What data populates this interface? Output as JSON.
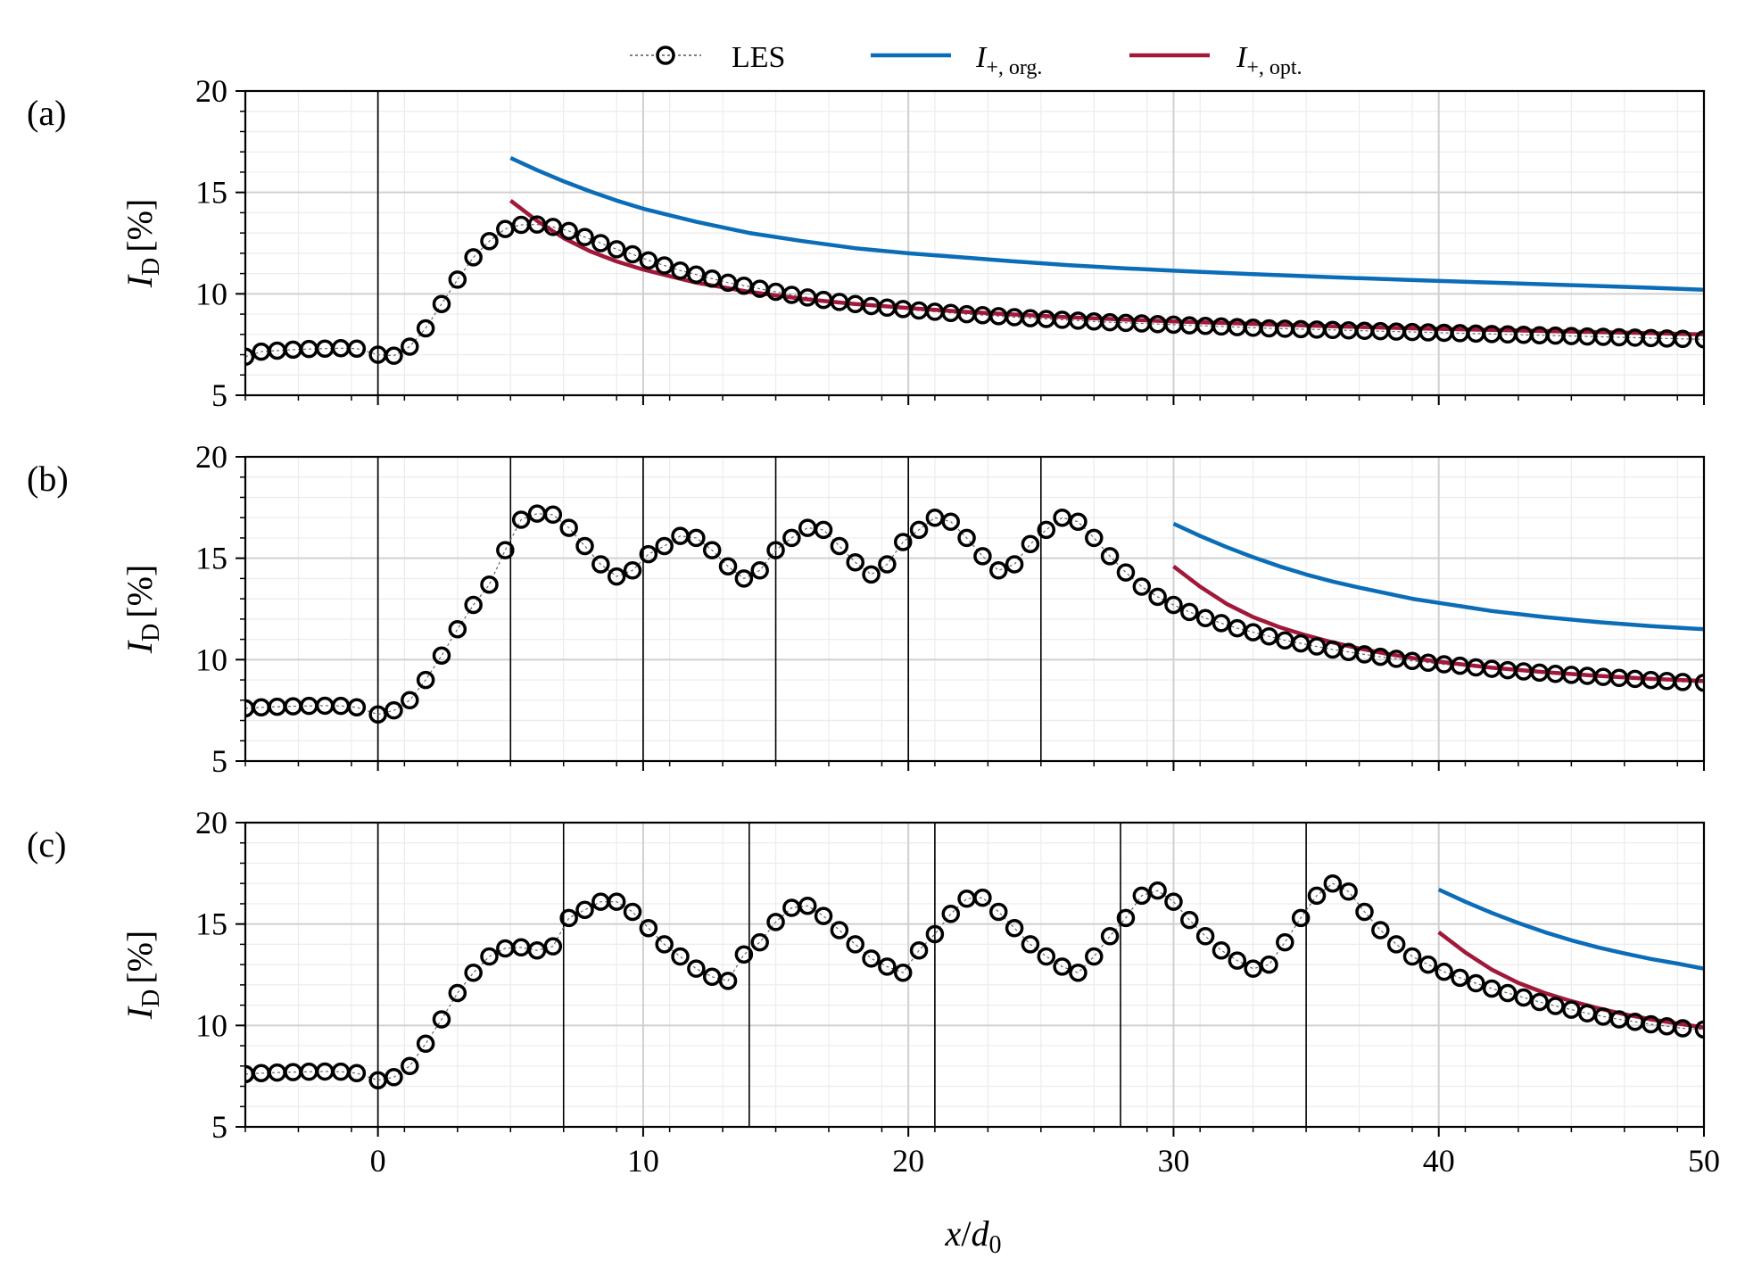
{
  "figure": {
    "xlabel": "x/d0",
    "xlabel_parts": {
      "var": "x",
      "slash": "/",
      "sym": "d",
      "sub": "0"
    },
    "ylabel_parts": {
      "sym": "I",
      "sub": "D",
      "rest": "[%]"
    },
    "colors": {
      "les": "#000000",
      "org": "#0b6db7",
      "opt": "#a0183a",
      "grid": "#d0d0d0"
    }
  },
  "legend": {
    "entries": [
      {
        "key": "les",
        "sym": "LES",
        "sub": ""
      },
      {
        "key": "org",
        "sym": "I",
        "sub": "+, org."
      },
      {
        "key": "opt",
        "sym": "I",
        "sub": "+, opt."
      }
    ]
  },
  "chart_data": [
    {
      "type": "line",
      "panel": "(a)",
      "xlim": [
        -5,
        50
      ],
      "ylim": [
        5,
        20
      ],
      "xticks": [
        0,
        10,
        20,
        30,
        40,
        50
      ],
      "yticks": [
        5,
        10,
        15,
        20
      ],
      "grid": true,
      "turbine_positions": [
        0
      ],
      "series": [
        {
          "name": "LES",
          "marker": "open-circle",
          "x": [
            -5.0,
            -4.4,
            -3.8,
            -3.2,
            -2.6,
            -2.0,
            -1.4,
            -0.8,
            0.0,
            0.6,
            1.2,
            1.8,
            2.4,
            3.0,
            3.6,
            4.2,
            4.8,
            5.4,
            6.0,
            6.6,
            7.2,
            7.8,
            8.4,
            9.0,
            9.6,
            10.2,
            10.8,
            11.4,
            12.0,
            12.6,
            13.2,
            13.8,
            14.4,
            15.0,
            15.6,
            16.2,
            16.8,
            17.4,
            18.0,
            18.6,
            19.2,
            19.8,
            20.4,
            21.0,
            21.6,
            22.2,
            22.8,
            23.4,
            24.0,
            24.6,
            25.2,
            25.8,
            26.4,
            27.0,
            27.6,
            28.2,
            28.8,
            29.4,
            30.0,
            30.6,
            31.2,
            31.8,
            32.4,
            33.0,
            33.6,
            34.2,
            34.8,
            35.4,
            36.0,
            36.6,
            37.2,
            37.8,
            38.4,
            39.0,
            39.6,
            40.2,
            40.8,
            41.4,
            42.0,
            42.6,
            43.2,
            43.8,
            44.4,
            45.0,
            45.6,
            46.2,
            46.8,
            47.4,
            48.0,
            48.6,
            49.2,
            50.0
          ],
          "y": [
            6.9,
            7.15,
            7.2,
            7.25,
            7.28,
            7.3,
            7.32,
            7.3,
            7.0,
            6.95,
            7.4,
            8.3,
            9.5,
            10.7,
            11.8,
            12.6,
            13.2,
            13.4,
            13.42,
            13.3,
            13.1,
            12.8,
            12.5,
            12.2,
            11.95,
            11.65,
            11.4,
            11.15,
            10.95,
            10.75,
            10.55,
            10.4,
            10.25,
            10.1,
            9.95,
            9.82,
            9.7,
            9.6,
            9.5,
            9.4,
            9.32,
            9.25,
            9.18,
            9.12,
            9.06,
            9.0,
            8.95,
            8.9,
            8.85,
            8.8,
            8.76,
            8.72,
            8.68,
            8.64,
            8.6,
            8.57,
            8.54,
            8.51,
            8.48,
            8.45,
            8.42,
            8.39,
            8.36,
            8.33,
            8.3,
            8.28,
            8.26,
            8.24,
            8.22,
            8.2,
            8.18,
            8.16,
            8.14,
            8.12,
            8.1,
            8.08,
            8.06,
            8.04,
            8.02,
            8.0,
            7.98,
            7.96,
            7.94,
            7.92,
            7.9,
            7.88,
            7.86,
            7.84,
            7.82,
            7.8,
            7.78,
            7.76
          ]
        },
        {
          "name": "I+,org.",
          "x": [
            5,
            6,
            7,
            8,
            9,
            10,
            12,
            14,
            16,
            18,
            20,
            22,
            24,
            26,
            28,
            30,
            33,
            36,
            39,
            42,
            45,
            48,
            50
          ],
          "y": [
            16.7,
            16.1,
            15.55,
            15.05,
            14.6,
            14.2,
            13.55,
            13.0,
            12.6,
            12.25,
            12.0,
            11.8,
            11.6,
            11.42,
            11.27,
            11.14,
            10.97,
            10.82,
            10.68,
            10.55,
            10.43,
            10.3,
            10.2
          ]
        },
        {
          "name": "I+,opt.",
          "x": [
            5,
            6,
            7,
            8,
            9,
            10,
            12,
            14,
            16,
            18,
            20,
            22,
            24,
            26,
            28,
            30,
            33,
            36,
            39,
            42,
            45,
            48,
            50
          ],
          "y": [
            14.6,
            13.6,
            12.75,
            12.1,
            11.6,
            11.2,
            10.55,
            10.1,
            9.75,
            9.5,
            9.3,
            9.12,
            8.98,
            8.85,
            8.74,
            8.64,
            8.52,
            8.4,
            8.3,
            8.22,
            8.14,
            8.06,
            8.0
          ]
        }
      ]
    },
    {
      "type": "line",
      "panel": "(b)",
      "xlim": [
        -5,
        50
      ],
      "ylim": [
        5,
        20
      ],
      "xticks": [
        0,
        10,
        20,
        30,
        40,
        50
      ],
      "yticks": [
        5,
        10,
        15,
        20
      ],
      "grid": true,
      "turbine_positions": [
        0,
        5,
        10,
        15,
        20,
        25
      ],
      "series": [
        {
          "name": "LES",
          "marker": "open-circle",
          "x": [
            -5.0,
            -4.4,
            -3.8,
            -3.2,
            -2.6,
            -2.0,
            -1.4,
            -0.8,
            0.0,
            0.6,
            1.2,
            1.8,
            2.4,
            3.0,
            3.6,
            4.2,
            4.8,
            5.4,
            6.0,
            6.6,
            7.2,
            7.8,
            8.4,
            9.0,
            9.6,
            10.2,
            10.8,
            11.4,
            12.0,
            12.6,
            13.2,
            13.8,
            14.4,
            15.0,
            15.6,
            16.2,
            16.8,
            17.4,
            18.0,
            18.6,
            19.2,
            19.8,
            20.4,
            21.0,
            21.6,
            22.2,
            22.8,
            23.4,
            24.0,
            24.6,
            25.2,
            25.8,
            26.4,
            27.0,
            27.6,
            28.2,
            28.8,
            29.4,
            30.0,
            30.6,
            31.2,
            31.8,
            32.4,
            33.0,
            33.6,
            34.2,
            34.8,
            35.4,
            36.0,
            36.6,
            37.2,
            37.8,
            38.4,
            39.0,
            39.6,
            40.2,
            40.8,
            41.4,
            42.0,
            42.6,
            43.2,
            43.8,
            44.4,
            45.0,
            45.6,
            46.2,
            46.8,
            47.4,
            48.0,
            48.6,
            49.2,
            50.0
          ],
          "y": [
            7.6,
            7.65,
            7.68,
            7.7,
            7.72,
            7.73,
            7.72,
            7.65,
            7.3,
            7.5,
            8.0,
            9.0,
            10.2,
            11.5,
            12.7,
            13.7,
            15.4,
            16.9,
            17.2,
            17.15,
            16.5,
            15.6,
            14.7,
            14.1,
            14.4,
            15.2,
            15.6,
            16.1,
            16.0,
            15.4,
            14.6,
            14.0,
            14.4,
            15.4,
            16.0,
            16.5,
            16.4,
            15.6,
            14.8,
            14.2,
            14.7,
            15.8,
            16.4,
            17.0,
            16.8,
            16.0,
            15.1,
            14.4,
            14.7,
            15.7,
            16.4,
            17.0,
            16.8,
            16.0,
            15.1,
            14.3,
            13.6,
            13.1,
            12.7,
            12.35,
            12.05,
            11.8,
            11.55,
            11.35,
            11.15,
            10.95,
            10.8,
            10.65,
            10.5,
            10.38,
            10.26,
            10.14,
            10.04,
            9.94,
            9.85,
            9.77,
            9.7,
            9.62,
            9.55,
            9.48,
            9.42,
            9.36,
            9.3,
            9.25,
            9.2,
            9.15,
            9.1,
            9.05,
            9.0,
            8.95,
            8.9,
            8.86
          ]
        },
        {
          "name": "I+,org.",
          "x": [
            30,
            31,
            32,
            33,
            34,
            35,
            36,
            37,
            38,
            39,
            40,
            42,
            44,
            46,
            48,
            50
          ],
          "y": [
            16.7,
            16.1,
            15.55,
            15.05,
            14.6,
            14.2,
            13.85,
            13.55,
            13.28,
            13.0,
            12.8,
            12.4,
            12.1,
            11.85,
            11.65,
            11.5
          ]
        },
        {
          "name": "I+,opt.",
          "x": [
            30,
            31,
            32,
            33,
            34,
            35,
            36,
            37,
            38,
            39,
            40,
            42,
            44,
            46,
            48,
            50
          ],
          "y": [
            14.6,
            13.6,
            12.75,
            12.1,
            11.6,
            11.2,
            10.85,
            10.55,
            10.3,
            10.08,
            9.9,
            9.6,
            9.38,
            9.2,
            9.05,
            8.95
          ]
        }
      ]
    },
    {
      "type": "line",
      "panel": "(c)",
      "xlim": [
        -5,
        50
      ],
      "ylim": [
        5,
        20
      ],
      "xticks": [
        0,
        10,
        20,
        30,
        40,
        50
      ],
      "yticks": [
        5,
        10,
        15,
        20
      ],
      "grid": true,
      "turbine_positions": [
        0,
        7,
        14,
        21,
        28,
        35
      ],
      "series": [
        {
          "name": "LES",
          "marker": "open-circle",
          "x": [
            -5.0,
            -4.4,
            -3.8,
            -3.2,
            -2.6,
            -2.0,
            -1.4,
            -0.8,
            0.0,
            0.6,
            1.2,
            1.8,
            2.4,
            3.0,
            3.6,
            4.2,
            4.8,
            5.4,
            6.0,
            6.6,
            7.2,
            7.8,
            8.4,
            9.0,
            9.6,
            10.2,
            10.8,
            11.4,
            12.0,
            12.6,
            13.2,
            13.8,
            14.4,
            15.0,
            15.6,
            16.2,
            16.8,
            17.4,
            18.0,
            18.6,
            19.2,
            19.8,
            20.4,
            21.0,
            21.6,
            22.2,
            22.8,
            23.4,
            24.0,
            24.6,
            25.2,
            25.8,
            26.4,
            27.0,
            27.6,
            28.2,
            28.8,
            29.4,
            30.0,
            30.6,
            31.2,
            31.8,
            32.4,
            33.0,
            33.6,
            34.2,
            34.8,
            35.4,
            36.0,
            36.6,
            37.2,
            37.8,
            38.4,
            39.0,
            39.6,
            40.2,
            40.8,
            41.4,
            42.0,
            42.6,
            43.2,
            43.8,
            44.4,
            45.0,
            45.6,
            46.2,
            46.8,
            47.4,
            48.0,
            48.6,
            49.2,
            50.0
          ],
          "y": [
            7.6,
            7.65,
            7.68,
            7.7,
            7.72,
            7.73,
            7.72,
            7.65,
            7.3,
            7.45,
            8.0,
            9.1,
            10.3,
            11.6,
            12.6,
            13.4,
            13.8,
            13.85,
            13.7,
            13.9,
            15.3,
            15.7,
            16.1,
            16.1,
            15.6,
            14.8,
            14.0,
            13.4,
            12.8,
            12.4,
            12.2,
            13.5,
            14.1,
            15.1,
            15.8,
            15.9,
            15.4,
            14.7,
            14.0,
            13.3,
            12.9,
            12.6,
            13.7,
            14.5,
            15.5,
            16.25,
            16.3,
            15.6,
            14.8,
            14.0,
            13.4,
            12.9,
            12.6,
            13.4,
            14.4,
            15.3,
            16.4,
            16.65,
            16.1,
            15.2,
            14.4,
            13.7,
            13.2,
            12.8,
            13.0,
            14.1,
            15.3,
            16.4,
            17.0,
            16.6,
            15.6,
            14.7,
            14.0,
            13.4,
            13.0,
            12.65,
            12.35,
            12.08,
            11.82,
            11.6,
            11.38,
            11.16,
            10.96,
            10.78,
            10.6,
            10.44,
            10.3,
            10.18,
            10.06,
            9.96,
            9.86,
            9.8
          ]
        },
        {
          "name": "I+,org.",
          "x": [
            40,
            41,
            42,
            43,
            44,
            45,
            46,
            47,
            48,
            49,
            50
          ],
          "y": [
            16.7,
            16.1,
            15.55,
            15.05,
            14.6,
            14.2,
            13.85,
            13.55,
            13.28,
            13.05,
            12.8
          ]
        },
        {
          "name": "I+,opt.",
          "x": [
            40,
            41,
            42,
            43,
            44,
            45,
            46,
            47,
            48,
            49,
            50
          ],
          "y": [
            14.6,
            13.6,
            12.75,
            12.1,
            11.6,
            11.2,
            10.85,
            10.55,
            10.3,
            10.1,
            9.9
          ]
        }
      ]
    }
  ]
}
